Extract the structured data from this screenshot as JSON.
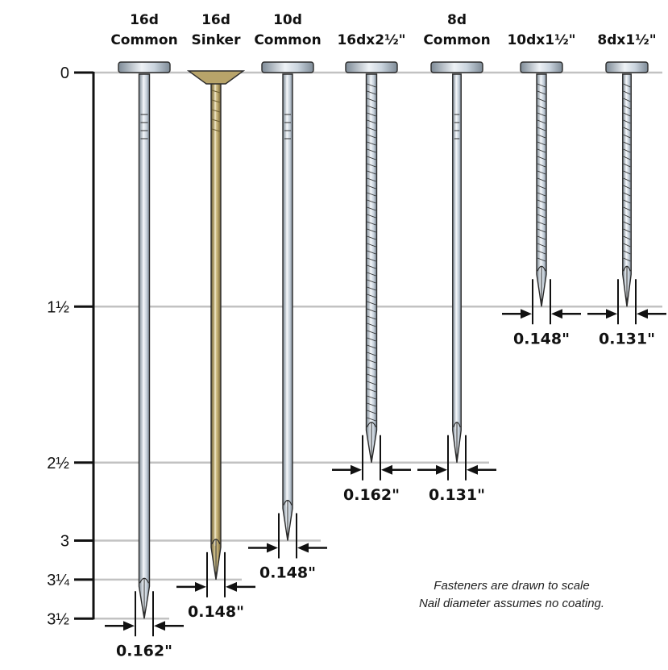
{
  "nails": [
    {
      "name_line1": "16d",
      "name_line2": "Common",
      "length_in": 3.5,
      "diameter_label": "0.162\"",
      "finish": "bright"
    },
    {
      "name_line1": "16d",
      "name_line2": "Sinker",
      "length_in": 3.25,
      "diameter_label": "0.148\"",
      "finish": "vinyl-coated"
    },
    {
      "name_line1": "10d",
      "name_line2": "Common",
      "length_in": 3.0,
      "diameter_label": "0.148\"",
      "finish": "bright"
    },
    {
      "name_line1": "",
      "name_line2": "16dx2½\"",
      "length_in": 2.5,
      "diameter_label": "0.162\"",
      "finish": "ring-shank"
    },
    {
      "name_line1": "8d",
      "name_line2": "Common",
      "length_in": 2.5,
      "diameter_label": "0.131\"",
      "finish": "bright"
    },
    {
      "name_line1": "",
      "name_line2": "10dx1½\"",
      "length_in": 1.5,
      "diameter_label": "0.148\"",
      "finish": "ring-shank"
    },
    {
      "name_line1": "",
      "name_line2": "8dx1½\"",
      "length_in": 1.5,
      "diameter_label": "0.131\"",
      "finish": "ring-shank"
    }
  ],
  "scale_ticks": [
    {
      "label": "0",
      "value_in": 0
    },
    {
      "label": "1½",
      "value_in": 1.5
    },
    {
      "label": "2½",
      "value_in": 2.5
    },
    {
      "label": "3",
      "value_in": 3.0
    },
    {
      "label": "3¼",
      "value_in": 3.25
    },
    {
      "label": "3½",
      "value_in": 3.5
    }
  ],
  "notes": {
    "line1": "Fasteners are drawn to scale",
    "line2": "Nail diameter assumes no coating."
  },
  "colors": {
    "steel": "#c9d3dd",
    "steel_dark": "#7d8a96",
    "steel_light": "#eef2f6",
    "sinker": "#b8a46a",
    "sinker_dark": "#6e5f34",
    "outline": "#2b2b2b",
    "gridline": "#c2c2c2",
    "ink": "#111111"
  }
}
